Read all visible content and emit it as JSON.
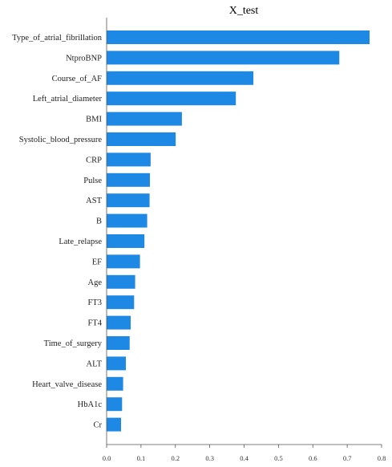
{
  "chart_data": {
    "type": "bar",
    "orientation": "horizontal",
    "title": "X_test",
    "xlabel": "",
    "ylabel": "",
    "xlim": [
      0,
      0.8
    ],
    "xticks": [
      "0.0",
      "0.1",
      "0.2",
      "0.3",
      "0.4",
      "0.5",
      "0.6",
      "0.7",
      "0.8"
    ],
    "bar_color": "#1e88e5",
    "grid": false,
    "categories": [
      "Type_of_atrial_fibrillation",
      "NtproBNP",
      "Course_of_AF",
      "Left_atrial_diameter",
      "BMI",
      "Systolic_blood_pressure",
      "CRP",
      "Pulse",
      "AST",
      "B",
      "Late_relapse",
      "EF",
      "Age",
      "FT3",
      "FT4",
      "Time_of_surgery",
      "ALT",
      "Heart_valve_disease",
      "HbA1c",
      "Cr"
    ],
    "values": [
      0.765,
      0.677,
      0.427,
      0.376,
      0.219,
      0.201,
      0.128,
      0.126,
      0.125,
      0.118,
      0.11,
      0.097,
      0.083,
      0.08,
      0.07,
      0.067,
      0.056,
      0.048,
      0.045,
      0.042
    ]
  }
}
